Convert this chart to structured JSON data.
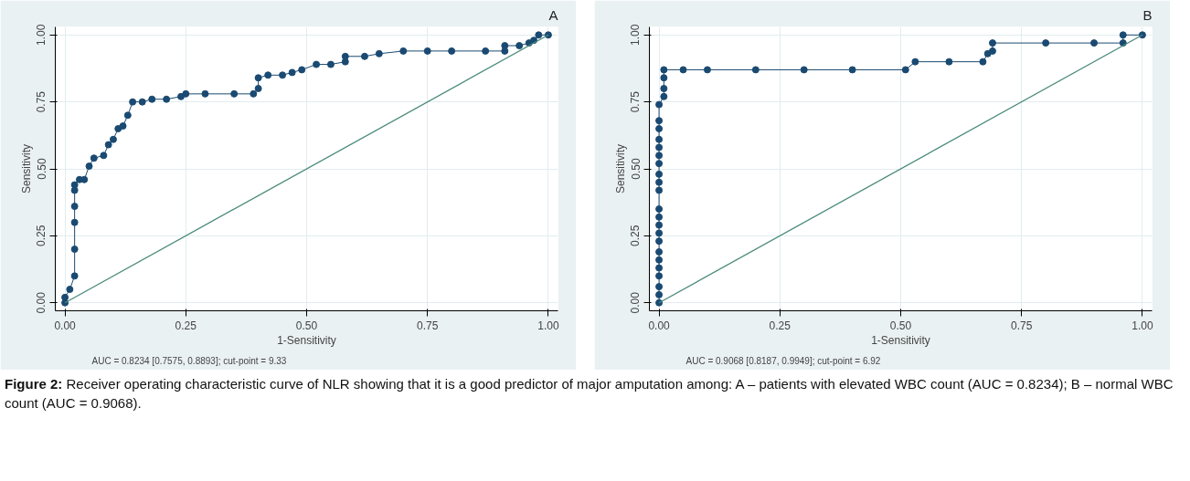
{
  "chart_data": [
    {
      "type": "line",
      "title": "A",
      "xlabel": "1-Sensitivity",
      "ylabel": "Sensitivity",
      "marker": "circle",
      "grid": true,
      "xlim": [
        -0.02,
        1.02
      ],
      "ylim": [
        -0.03,
        1.03
      ],
      "xticks": [
        {
          "value": 0,
          "label": "0.00"
        },
        {
          "value": 0.25,
          "label": "0.25"
        },
        {
          "value": 0.5,
          "label": "0.50"
        },
        {
          "value": 0.75,
          "label": "0.75"
        },
        {
          "value": 1,
          "label": "1.00"
        }
      ],
      "yticks": [
        {
          "value": 0,
          "label": "0.00"
        },
        {
          "value": 0.25,
          "label": "0.25"
        },
        {
          "value": 0.5,
          "label": "0.50"
        },
        {
          "value": 0.75,
          "label": "0.75"
        },
        {
          "value": 1,
          "label": "1.00"
        }
      ],
      "series": [
        {
          "color": "#1a4a72",
          "x": [
            0,
            0,
            0.01,
            0.02,
            0.02,
            0.02,
            0.02,
            0.02,
            0.02,
            0.03,
            0.04,
            0.05,
            0.06,
            0.08,
            0.09,
            0.1,
            0.11,
            0.12,
            0.13,
            0.14,
            0.16,
            0.18,
            0.21,
            0.24,
            0.25,
            0.29,
            0.35,
            0.39,
            0.4,
            0.4,
            0.42,
            0.45,
            0.47,
            0.49,
            0.52,
            0.55,
            0.58,
            0.58,
            0.62,
            0.65,
            0.7,
            0.75,
            0.8,
            0.87,
            0.91,
            0.91,
            0.94,
            0.96,
            0.97,
            0.98,
            1.0
          ],
          "values": [
            0,
            0.02,
            0.05,
            0.1,
            0.2,
            0.3,
            0.36,
            0.42,
            0.44,
            0.46,
            0.46,
            0.51,
            0.54,
            0.55,
            0.59,
            0.61,
            0.65,
            0.66,
            0.7,
            0.75,
            0.75,
            0.76,
            0.76,
            0.77,
            0.78,
            0.78,
            0.78,
            0.78,
            0.8,
            0.84,
            0.85,
            0.85,
            0.86,
            0.87,
            0.89,
            0.89,
            0.9,
            0.92,
            0.92,
            0.93,
            0.94,
            0.94,
            0.94,
            0.94,
            0.94,
            0.96,
            0.96,
            0.97,
            0.98,
            1.0,
            1.0
          ]
        },
        {
          "type": "line",
          "color": "#4a8a7a",
          "marker": "none",
          "x": [
            0,
            1
          ],
          "values": [
            0,
            1
          ]
        }
      ],
      "annotations": [
        "AUC = 0.8234 [0.7575, 0.8893]; cut-point = 9.33"
      ]
    },
    {
      "type": "line",
      "title": "B",
      "xlabel": "1-Sensitivity",
      "ylabel": "Sensitivity",
      "marker": "circle",
      "grid": true,
      "xlim": [
        -0.02,
        1.02
      ],
      "ylim": [
        -0.03,
        1.03
      ],
      "xticks": [
        {
          "value": 0,
          "label": "0.00"
        },
        {
          "value": 0.25,
          "label": "0.25"
        },
        {
          "value": 0.5,
          "label": "0.50"
        },
        {
          "value": 0.75,
          "label": "0.75"
        },
        {
          "value": 1,
          "label": "1.00"
        }
      ],
      "yticks": [
        {
          "value": 0,
          "label": "0.00"
        },
        {
          "value": 0.25,
          "label": "0.25"
        },
        {
          "value": 0.5,
          "label": "0.50"
        },
        {
          "value": 0.75,
          "label": "0.75"
        },
        {
          "value": 1,
          "label": "1.00"
        }
      ],
      "series": [
        {
          "color": "#1a4a72",
          "x": [
            0,
            0,
            0,
            0,
            0,
            0,
            0,
            0,
            0,
            0,
            0,
            0,
            0,
            0,
            0,
            0,
            0,
            0,
            0,
            0,
            0,
            0,
            0.01,
            0.01,
            0.01,
            0.01,
            0.05,
            0.1,
            0.2,
            0.3,
            0.4,
            0.51,
            0.53,
            0.6,
            0.67,
            0.68,
            0.69,
            0.69,
            0.8,
            0.9,
            0.96,
            0.96,
            1.0
          ],
          "values": [
            0,
            0.03,
            0.06,
            0.1,
            0.13,
            0.16,
            0.19,
            0.23,
            0.26,
            0.29,
            0.32,
            0.35,
            0.42,
            0.45,
            0.48,
            0.52,
            0.55,
            0.58,
            0.61,
            0.65,
            0.68,
            0.74,
            0.77,
            0.8,
            0.84,
            0.87,
            0.87,
            0.87,
            0.87,
            0.87,
            0.87,
            0.87,
            0.9,
            0.9,
            0.9,
            0.93,
            0.94,
            0.97,
            0.97,
            0.97,
            0.97,
            1.0,
            1.0
          ]
        },
        {
          "type": "line",
          "color": "#4a8a7a",
          "marker": "none",
          "x": [
            0,
            1
          ],
          "values": [
            0,
            1
          ]
        }
      ],
      "annotations": [
        "AUC = 0.9068 [0.8187, 0.9949]; cut-point = 6.92",
        "Figure 2: Receiver operating characteristic curve of NLR showing that it is a good predictor of major amputation among: A – patients with elevated WBC count (AUC = 0.8234); B – normal WBC count (AUC = 0.9068)."
      ]
    }
  ]
}
